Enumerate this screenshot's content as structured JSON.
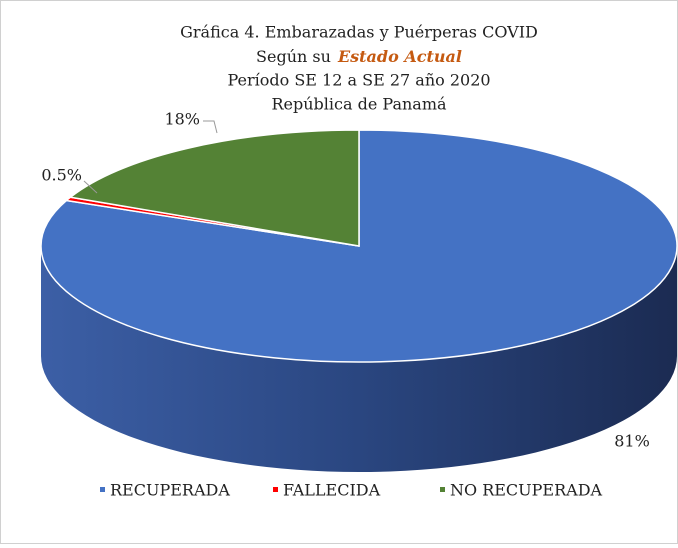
{
  "chart_data": {
    "type": "pie3d",
    "title": "Gráfica 4. Embarazadas y Puérperas COVID",
    "subtitle_prefix": "Según su",
    "subtitle_emphasis": "Estado Actual",
    "period": "Período SE 12 a SE 27 año 2020",
    "country": "República de Panamá",
    "categories": [
      "RECUPERADA",
      "FALLECIDA",
      "NO RECUPERADA"
    ],
    "values": [
      81,
      0.5,
      18
    ],
    "value_labels": [
      "81%",
      "0.5%",
      "18%"
    ],
    "colors": [
      "#4472c4",
      "#ff0000",
      "#548235"
    ],
    "legend": "bottom"
  }
}
